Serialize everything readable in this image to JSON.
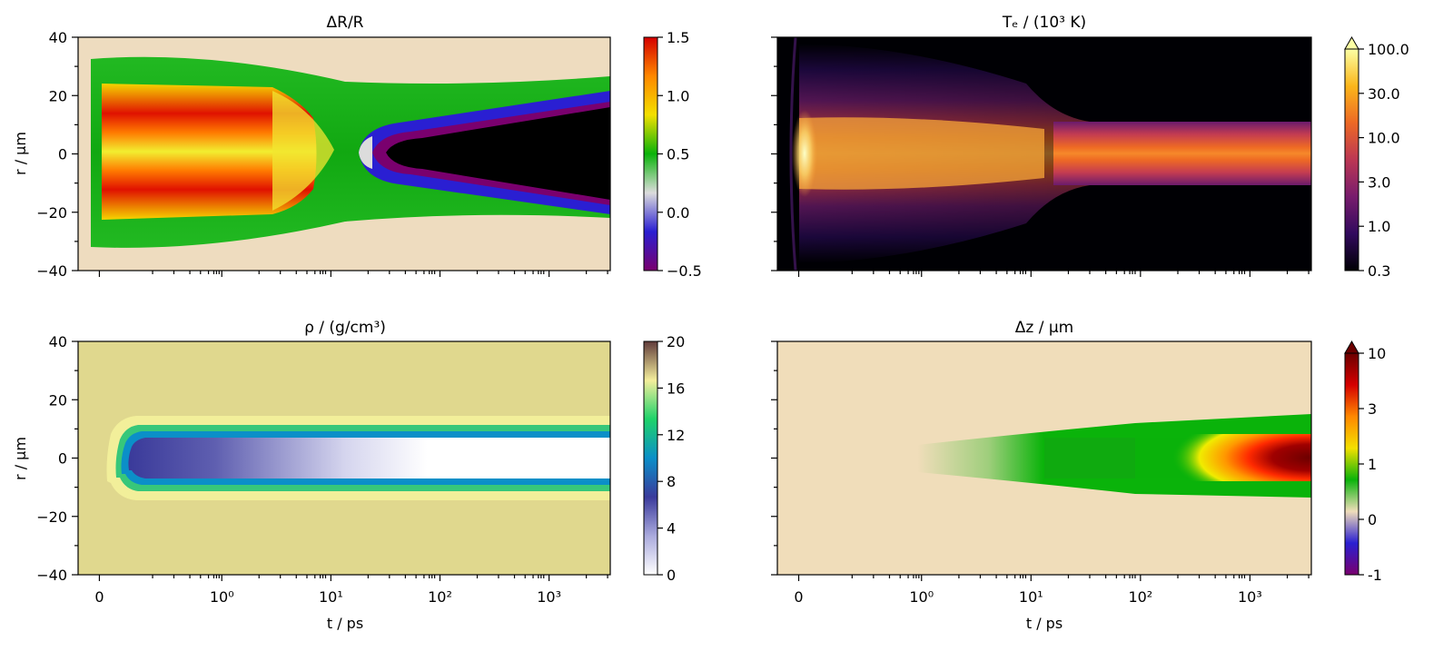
{
  "chart_data": [
    {
      "type": "heatmap",
      "title": "ΔR/R",
      "xlabel": "",
      "ylabel": "r / µm",
      "xscale": "symlog (linear near 0, log beyond)",
      "ylim": [
        -40,
        40
      ],
      "yticks": [
        "40",
        "20",
        "0",
        "−20",
        "−40"
      ],
      "xticks": [],
      "colorbar": {
        "label": "",
        "range": [
          -0.5,
          1.5
        ],
        "ticks": [
          "1.5",
          "1.0",
          "0.5",
          "0.0",
          "−0.5"
        ],
        "colors": [
          "#7a006e",
          "#2a1fd2",
          "#dcdcdc",
          "#0ab30a",
          "#f3e000",
          "#ff8800",
          "#d50000"
        ]
      },
      "features": "Strong positive reflectivity change (red/yellow) for r within ±25 µm from ~0 to ~10 ps; negative region (blue/black) opening after ~20 ps and widening to ±20 µm by 10³ ps."
    },
    {
      "type": "heatmap",
      "title": "Tₑ / (10³ K)",
      "xlabel": "",
      "ylabel": "",
      "xscale": "symlog",
      "ylim": [
        -40,
        40
      ],
      "xticks": [],
      "colorbar": {
        "label": "",
        "scale": "log",
        "range": [
          0.3,
          100
        ],
        "ticks": [
          "100.0",
          "30.0",
          "10.0",
          "3.0",
          "1.0",
          "0.3"
        ],
        "colors": [
          "#000004",
          "#320a5e",
          "#781c6d",
          "#bc3754",
          "#ed6925",
          "#fbb61a",
          "#fcffa4"
        ],
        "extend": "max"
      },
      "features": "Hot electron core (up to ~100) near t≈0 at r≈0, cooling to ~10 and staying confined to |r|<10 µm out to 10³ ps; purple halo to ±30 µm until ~30 ps."
    },
    {
      "type": "heatmap",
      "title": "ρ / (g/cm³)",
      "xlabel": "t / ps",
      "ylabel": "r / µm",
      "xscale": "symlog",
      "ylim": [
        -40,
        40
      ],
      "yticks": [
        "40",
        "20",
        "0",
        "−20",
        "−40"
      ],
      "xticks": [
        "0",
        "10⁰",
        "10¹",
        "10²",
        "10³"
      ],
      "colorbar": {
        "label": "",
        "range": [
          0,
          21
        ],
        "ticks": [
          "20",
          "16",
          "12",
          "8",
          "4",
          "0"
        ],
        "colors": [
          "#ffffff",
          "#aaaadd",
          "#3b3b9c",
          "#0b8fc8",
          "#1fd36a",
          "#f4ee9c",
          "#613b3b"
        ]
      },
      "features": "Background density ~19 (khaki); density drops inside |r|<8 µm after t≈0, from ~7 (dark blue) to ~0 (white) by ~30 ps, with blue/green rim."
    },
    {
      "type": "heatmap",
      "title": "Δz / µm",
      "xlabel": "t / ps",
      "ylabel": "",
      "xscale": "symlog",
      "ylim": [
        -40,
        40
      ],
      "xticks": [
        "0",
        "10⁰",
        "10¹",
        "10²",
        "10³"
      ],
      "colorbar": {
        "label": "",
        "scale": "symlog",
        "range": [
          -1,
          10
        ],
        "ticks": [
          "10",
          "3",
          "1",
          "0",
          "-1"
        ],
        "colors": [
          "#7a006e",
          "#2a1fd2",
          "#f0ddba",
          "#0ab30a",
          "#f3e000",
          "#ff8800",
          "#d50000",
          "#6b0000"
        ],
        "extend": "max"
      },
      "features": "Surface displacement grows after ~10 ps (green ~0.5 µm), spreading to |r|<12 µm; central region reaches ~10 µm (dark red) beyond 10³ ps."
    }
  ]
}
